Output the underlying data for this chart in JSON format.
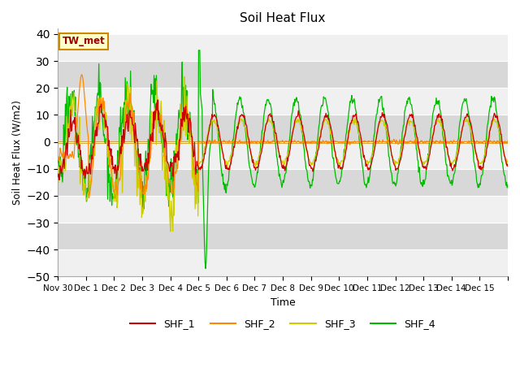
{
  "title": "Soil Heat Flux",
  "xlabel": "Time",
  "ylabel": "Soil Heat Flux (W/m2)",
  "ylim": [
    -50,
    42
  ],
  "yticks": [
    -50,
    -40,
    -30,
    -20,
    -10,
    0,
    10,
    20,
    30,
    40
  ],
  "band_colors": [
    "#f0f0f0",
    "#d8d8d8"
  ],
  "line_colors": {
    "SHF_1": "#cc0000",
    "SHF_2": "#ff8800",
    "SHF_3": "#cccc00",
    "SHF_4": "#00bb00"
  },
  "zero_line_color": "#cc8800",
  "annotation_text": "TW_met",
  "annotation_bg": "#ffffcc",
  "annotation_border": "#cc8800",
  "num_days": 16,
  "points_per_day": 48,
  "tick_labels": [
    "Nov 30",
    "Dec 1",
    "Dec 2",
    "Dec 3",
    "Dec 4",
    "Dec 5",
    "Dec 6",
    "Dec 7",
    "Dec 8",
    "Dec 9",
    "Dec 10",
    "Dec 11",
    "Dec 12",
    "Dec 13",
    "Dec 14",
    "Dec 15",
    ""
  ]
}
